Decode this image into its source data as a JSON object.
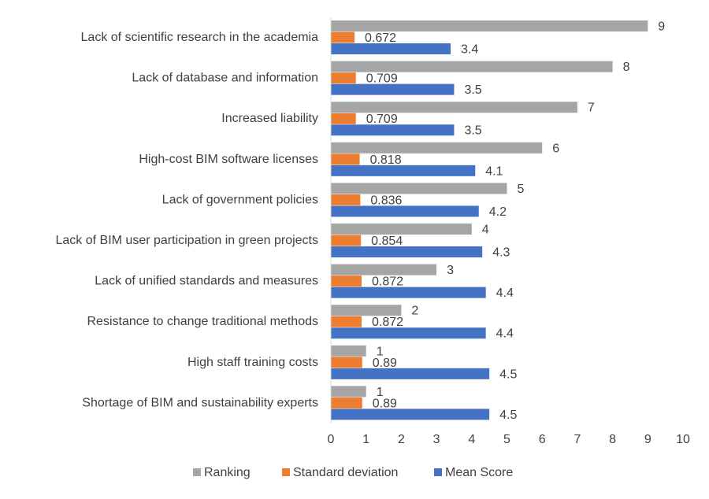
{
  "chart_data": {
    "type": "bar",
    "orientation": "horizontal",
    "categories": [
      "Lack of scientific research in the academia",
      "Lack of database and information ",
      "Increased liability",
      "High-cost BIM software licenses",
      "Lack of government policies ",
      "Lack of BIM user participation in green projects",
      "Lack of unified standards and measures",
      "Resistance to change traditional methods",
      "High staff training costs",
      "Shortage of BIM and sustainability experts"
    ],
    "series": [
      {
        "name": "Ranking",
        "color": "#a5a5a5",
        "values": [
          9,
          8,
          7,
          6,
          5,
          4,
          3,
          2,
          1,
          1
        ],
        "labels": [
          "9",
          "8",
          "7",
          "6",
          "5",
          "4",
          "3",
          "2",
          "1",
          "1"
        ]
      },
      {
        "name": "Standard deviation",
        "color": "#ed7d31",
        "values": [
          0.672,
          0.709,
          0.709,
          0.818,
          0.836,
          0.854,
          0.872,
          0.872,
          0.89,
          0.89
        ],
        "labels": [
          "0.672",
          "0.709",
          "0.709",
          "0.818",
          "0.836",
          "0.854",
          "0.872",
          "0.872",
          "0.89",
          "0.89"
        ]
      },
      {
        "name": "Mean Score",
        "color": "#4472c4",
        "values": [
          3.4,
          3.5,
          3.5,
          4.1,
          4.2,
          4.3,
          4.4,
          4.4,
          4.5,
          4.5
        ],
        "labels": [
          "3.4",
          "3.5",
          "3.5",
          "4.1",
          "4.2",
          "4.3",
          "4.4",
          "4.4",
          "4.5",
          "4.5"
        ]
      }
    ],
    "xlim": [
      0,
      10
    ],
    "x_ticks": [
      "0",
      "1",
      "2",
      "3",
      "4",
      "5",
      "6",
      "7",
      "8",
      "9",
      "10"
    ],
    "grid": false,
    "legend": "bottom",
    "title": "",
    "xlabel": "",
    "ylabel": ""
  }
}
